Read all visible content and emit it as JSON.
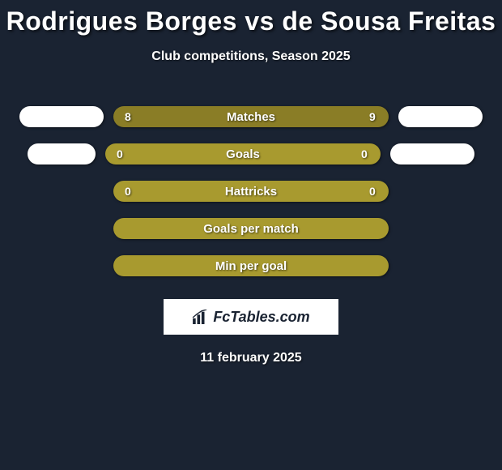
{
  "title": "Rodrigues Borges vs de Sousa Freitas",
  "subtitle": "Club competitions, Season 2025",
  "footer_date": "11 february 2025",
  "logo_text": "FcTables.com",
  "colors": {
    "background": "#1a2332",
    "bar_fill": "#a89a2f",
    "bar_header": "#8a7d26",
    "pill": "#ffffff",
    "text": "#ffffff"
  },
  "rows": [
    {
      "label": "Matches",
      "left_val": "8",
      "right_val": "9",
      "left_pill_w": 104,
      "right_pill_w": 104,
      "header": true
    },
    {
      "label": "Goals",
      "left_val": "0",
      "right_val": "0",
      "left_pill_w": 84,
      "right_pill_w": 104,
      "header": false
    },
    {
      "label": "Hattricks",
      "left_val": "0",
      "right_val": "0",
      "left_pill_w": 0,
      "right_pill_w": 0,
      "header": false
    },
    {
      "label": "Goals per match",
      "left_val": "",
      "right_val": "",
      "left_pill_w": 0,
      "right_pill_w": 0,
      "header": false
    },
    {
      "label": "Min per goal",
      "left_val": "",
      "right_val": "",
      "left_pill_w": 0,
      "right_pill_w": 0,
      "header": false
    }
  ],
  "typography": {
    "title_fontsize": 32,
    "subtitle_fontsize": 16,
    "bar_label_fontsize": 15,
    "bar_val_fontsize": 14,
    "footer_fontsize": 16
  }
}
